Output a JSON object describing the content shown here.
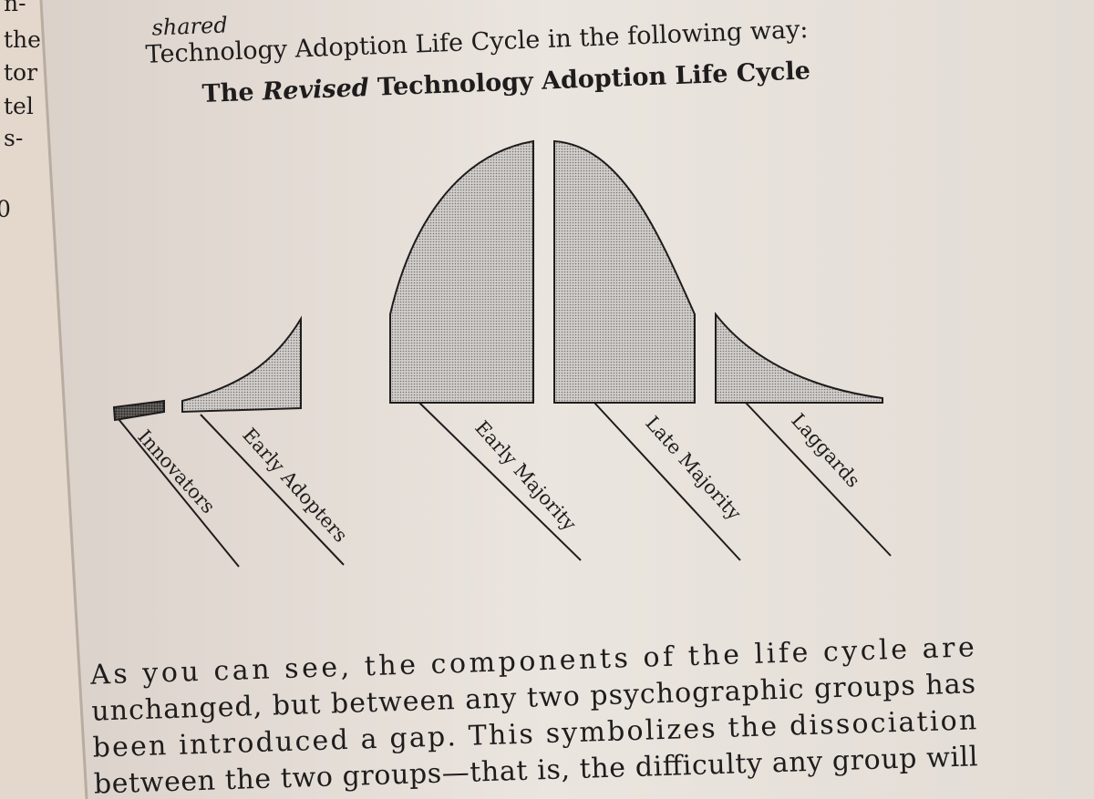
{
  "margin_text": [
    "n-",
    "the",
    "tor",
    "tel",
    "s-",
    "0"
  ],
  "intro": [
    "shared",
    "Technology Adoption Life Cycle in the following way:"
  ],
  "figure": {
    "title": {
      "before": "The",
      "emphasis": "Revised",
      "after": "Technology Adoption Life Cycle"
    },
    "segments": [
      "Innovators",
      "Early Adopters",
      "Early Majority",
      "Late Majority",
      "Laggards"
    ]
  },
  "paragraph": [
    "As you can see, the components of the life cycle are",
    "unchanged, but between any two psychographic groups has",
    "been introduced a gap. This symbolizes the dissociation",
    "between the two groups—that is, the difficulty any group will"
  ]
}
